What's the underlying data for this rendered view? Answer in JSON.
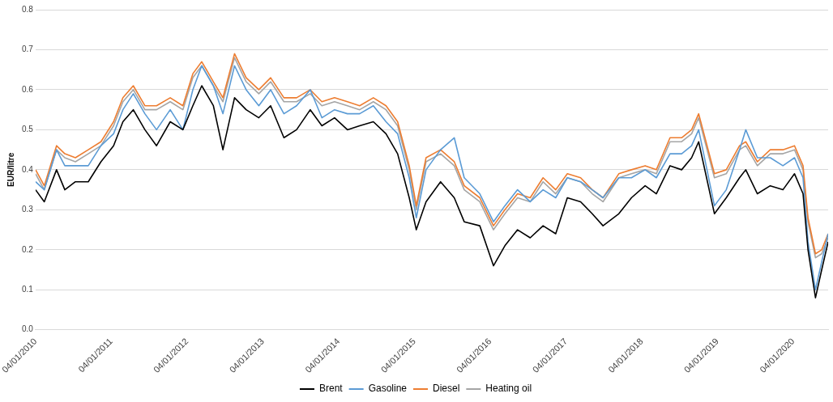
{
  "chart_data": {
    "type": "line",
    "ylabel": "EUR/litre",
    "x": [
      "2010-01-04",
      "2010-02-15",
      "2010-04-15",
      "2010-05-25",
      "2010-07-15",
      "2010-09-15",
      "2010-11-15",
      "2011-01-15",
      "2011-03-01",
      "2011-04-20",
      "2011-06-15",
      "2011-08-10",
      "2011-10-15",
      "2011-12-15",
      "2012-02-01",
      "2012-03-15",
      "2012-05-10",
      "2012-06-25",
      "2012-08-20",
      "2012-10-15",
      "2012-12-15",
      "2013-02-10",
      "2013-04-15",
      "2013-06-15",
      "2013-08-20",
      "2013-10-15",
      "2013-12-15",
      "2014-02-15",
      "2014-04-15",
      "2014-06-20",
      "2014-08-20",
      "2014-10-15",
      "2014-12-10",
      "2015-01-13",
      "2015-03-01",
      "2015-05-10",
      "2015-07-15",
      "2015-09-01",
      "2015-11-15",
      "2016-01-20",
      "2016-03-15",
      "2016-05-15",
      "2016-07-15",
      "2016-09-15",
      "2016-11-15",
      "2017-01-10",
      "2017-03-15",
      "2017-05-10",
      "2017-07-01",
      "2017-09-15",
      "2017-11-15",
      "2018-01-20",
      "2018-03-15",
      "2018-05-20",
      "2018-07-15",
      "2018-09-01",
      "2018-10-05",
      "2018-12-20",
      "2019-02-15",
      "2019-04-20",
      "2019-05-20",
      "2019-07-15",
      "2019-09-15",
      "2019-11-15",
      "2020-01-10",
      "2020-02-20",
      "2020-03-15",
      "2020-04-20",
      "2020-05-20",
      "2020-06-20"
    ],
    "series": [
      {
        "name": "Brent",
        "color": "#000000",
        "values": [
          0.35,
          0.32,
          0.4,
          0.35,
          0.37,
          0.37,
          0.42,
          0.46,
          0.52,
          0.55,
          0.5,
          0.46,
          0.52,
          0.5,
          0.56,
          0.61,
          0.56,
          0.45,
          0.58,
          0.55,
          0.53,
          0.56,
          0.48,
          0.5,
          0.55,
          0.51,
          0.53,
          0.5,
          0.51,
          0.52,
          0.49,
          0.44,
          0.33,
          0.25,
          0.32,
          0.37,
          0.33,
          0.27,
          0.26,
          0.16,
          0.21,
          0.25,
          0.23,
          0.26,
          0.24,
          0.33,
          0.32,
          0.29,
          0.26,
          0.29,
          0.33,
          0.36,
          0.34,
          0.41,
          0.4,
          0.43,
          0.47,
          0.29,
          0.33,
          0.38,
          0.4,
          0.34,
          0.36,
          0.35,
          0.39,
          0.34,
          0.2,
          0.08,
          0.15,
          0.22
        ]
      },
      {
        "name": "Gasoline",
        "color": "#5b9bd5",
        "values": [
          0.37,
          0.35,
          0.45,
          0.41,
          0.41,
          0.41,
          0.46,
          0.49,
          0.55,
          0.59,
          0.54,
          0.5,
          0.55,
          0.5,
          0.6,
          0.66,
          0.61,
          0.54,
          0.66,
          0.6,
          0.56,
          0.6,
          0.54,
          0.56,
          0.6,
          0.53,
          0.55,
          0.54,
          0.54,
          0.56,
          0.52,
          0.49,
          0.38,
          0.28,
          0.4,
          0.45,
          0.48,
          0.38,
          0.34,
          0.27,
          0.31,
          0.35,
          0.32,
          0.35,
          0.33,
          0.38,
          0.37,
          0.35,
          0.33,
          0.38,
          0.38,
          0.4,
          0.38,
          0.44,
          0.44,
          0.46,
          0.5,
          0.31,
          0.35,
          0.45,
          0.5,
          0.43,
          0.43,
          0.41,
          0.43,
          0.38,
          0.22,
          0.1,
          0.17,
          0.24
        ]
      },
      {
        "name": "Diesel",
        "color": "#ed7d31",
        "values": [
          0.4,
          0.36,
          0.46,
          0.44,
          0.43,
          0.45,
          0.47,
          0.52,
          0.58,
          0.61,
          0.56,
          0.56,
          0.58,
          0.56,
          0.64,
          0.67,
          0.62,
          0.58,
          0.69,
          0.63,
          0.6,
          0.63,
          0.58,
          0.58,
          0.6,
          0.57,
          0.58,
          0.57,
          0.56,
          0.58,
          0.56,
          0.52,
          0.41,
          0.31,
          0.43,
          0.45,
          0.42,
          0.36,
          0.33,
          0.26,
          0.3,
          0.34,
          0.33,
          0.38,
          0.35,
          0.39,
          0.38,
          0.35,
          0.33,
          0.39,
          0.4,
          0.41,
          0.4,
          0.48,
          0.48,
          0.5,
          0.54,
          0.39,
          0.4,
          0.46,
          0.47,
          0.42,
          0.45,
          0.45,
          0.46,
          0.41,
          0.28,
          0.19,
          0.2,
          0.24
        ]
      },
      {
        "name": "Heating oil",
        "color": "#a5a5a5",
        "values": [
          0.39,
          0.35,
          0.45,
          0.43,
          0.42,
          0.44,
          0.46,
          0.51,
          0.57,
          0.6,
          0.55,
          0.55,
          0.57,
          0.55,
          0.63,
          0.66,
          0.61,
          0.57,
          0.68,
          0.62,
          0.59,
          0.62,
          0.57,
          0.57,
          0.59,
          0.56,
          0.57,
          0.56,
          0.55,
          0.57,
          0.55,
          0.51,
          0.4,
          0.3,
          0.42,
          0.44,
          0.41,
          0.35,
          0.32,
          0.25,
          0.29,
          0.33,
          0.32,
          0.37,
          0.34,
          0.38,
          0.37,
          0.34,
          0.32,
          0.38,
          0.39,
          0.4,
          0.39,
          0.47,
          0.47,
          0.49,
          0.53,
          0.38,
          0.39,
          0.45,
          0.46,
          0.41,
          0.44,
          0.44,
          0.45,
          0.4,
          0.27,
          0.18,
          0.19,
          0.23
        ]
      }
    ],
    "xlim": [
      "2010-01-04",
      "2020-06-20"
    ],
    "xticks": [
      {
        "value": "2010-01-04",
        "label": "04/01/2010"
      },
      {
        "value": "2011-01-04",
        "label": "04/01/2011"
      },
      {
        "value": "2012-01-04",
        "label": "04/01/2012"
      },
      {
        "value": "2013-01-04",
        "label": "04/01/2013"
      },
      {
        "value": "2014-01-04",
        "label": "04/01/2014"
      },
      {
        "value": "2015-01-04",
        "label": "04/01/2015"
      },
      {
        "value": "2016-01-04",
        "label": "04/01/2016"
      },
      {
        "value": "2017-01-04",
        "label": "04/01/2017"
      },
      {
        "value": "2018-01-04",
        "label": "04/01/2018"
      },
      {
        "value": "2019-01-04",
        "label": "04/01/2019"
      },
      {
        "value": "2020-01-04",
        "label": "04/01/2020"
      }
    ],
    "ylim": [
      0,
      0.8
    ],
    "yticks": [
      {
        "value": 0,
        "label": "0.0"
      },
      {
        "value": 0.1,
        "label": "0.1"
      },
      {
        "value": 0.2,
        "label": "0.2"
      },
      {
        "value": 0.3,
        "label": "0.3"
      },
      {
        "value": 0.4,
        "label": "0.4"
      },
      {
        "value": 0.5,
        "label": "0.5"
      },
      {
        "value": 0.6,
        "label": "0.6"
      },
      {
        "value": 0.7,
        "label": "0.7"
      },
      {
        "value": 0.8,
        "label": "0.8"
      }
    ],
    "grid": "y",
    "legend": "bottom",
    "marker": "none",
    "line_style": "solid"
  }
}
